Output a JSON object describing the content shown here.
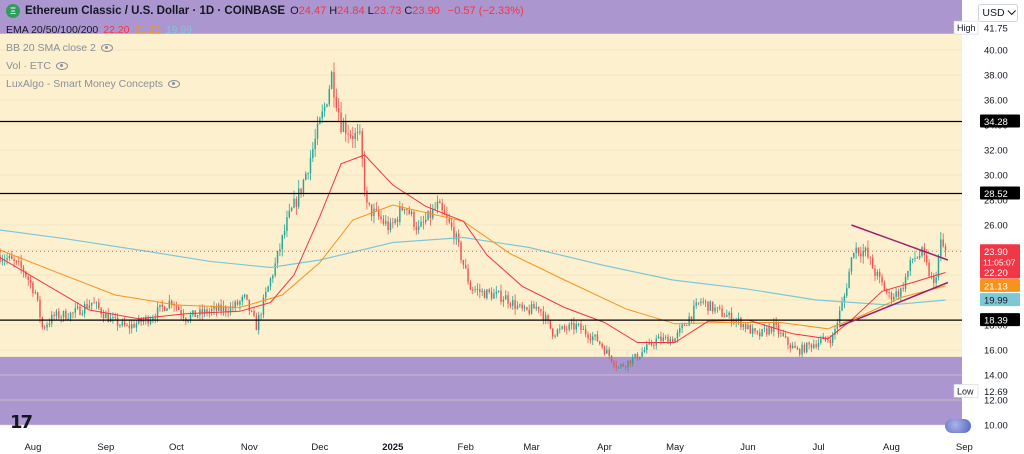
{
  "header": {
    "logo_glyph": "Ξ",
    "title": "Ethereum Classic / U.S. Dollar · 1D · COINBASE",
    "ohlc": [
      {
        "k": "O",
        "v": "24.47"
      },
      {
        "k": "H",
        "v": "24.84"
      },
      {
        "k": "L",
        "v": "23.73"
      },
      {
        "k": "C",
        "v": "23.90"
      }
    ],
    "change": "−0.57 (−2.33%)",
    "ema_label": "EMA 20/50/100/200",
    "ema_values": [
      {
        "v": "22.20",
        "color": "#f23645"
      },
      {
        "v": "21.13",
        "color": "#f7931a"
      },
      {
        "v": "19.99",
        "color": "#7ec8d6"
      }
    ],
    "indicators": [
      "BB 20 SMA close 2",
      "Vol · ETC",
      "LuxAlgo - Smart Money Concepts"
    ]
  },
  "currency_button": "USD",
  "tv_logo": "17",
  "colors": {
    "background": "#fdf0cf",
    "zone": "#ac96cf",
    "up": "#26a69a",
    "down": "#ef5350",
    "ema20": "#f23645",
    "ema50": "#f7931a",
    "ema200": "#7ec8d6",
    "wedge": "#9c1f6e",
    "level_line": "#000000"
  },
  "chart_data": {
    "type": "candlestick",
    "symbol": "ETC/USD",
    "timeframe": "1D",
    "x_range": [
      "2024-07-18",
      "2025-08-31"
    ],
    "ylim": [
      10,
      44
    ],
    "y_ticks": [
      10.0,
      12.0,
      14.0,
      16.0,
      18.0,
      20.0,
      22.0,
      24.0,
      26.0,
      28.0,
      30.0,
      32.0,
      34.0,
      36.0,
      38.0,
      40.0
    ],
    "x_labels": [
      {
        "label": "Aug",
        "date": "2024-08-01"
      },
      {
        "label": "Sep",
        "date": "2024-09-01"
      },
      {
        "label": "Oct",
        "date": "2024-10-01"
      },
      {
        "label": "Nov",
        "date": "2024-11-01"
      },
      {
        "label": "Dec",
        "date": "2024-12-01"
      },
      {
        "label": "2025",
        "date": "2025-01-01",
        "bold": true
      },
      {
        "label": "Feb",
        "date": "2025-02-01"
      },
      {
        "label": "Mar",
        "date": "2025-03-01"
      },
      {
        "label": "Apr",
        "date": "2025-04-01"
      },
      {
        "label": "May",
        "date": "2025-05-01"
      },
      {
        "label": "Jun",
        "date": "2025-06-01"
      },
      {
        "label": "Jul",
        "date": "2025-07-01"
      },
      {
        "label": "Aug",
        "date": "2025-08-01"
      },
      {
        "label": "Sep",
        "date": "2025-09-01"
      }
    ],
    "path": [
      {
        "date": "2024-07-18",
        "price": 23.6
      },
      {
        "date": "2024-07-22",
        "price": 23.2
      },
      {
        "date": "2024-07-28",
        "price": 22.4
      },
      {
        "date": "2024-08-02",
        "price": 20.6
      },
      {
        "date": "2024-08-05",
        "price": 17.8
      },
      {
        "date": "2024-08-10",
        "price": 18.7
      },
      {
        "date": "2024-08-18",
        "price": 18.9
      },
      {
        "date": "2024-08-26",
        "price": 19.8
      },
      {
        "date": "2024-09-03",
        "price": 18.4
      },
      {
        "date": "2024-09-10",
        "price": 17.8
      },
      {
        "date": "2024-09-20",
        "price": 18.6
      },
      {
        "date": "2024-09-29",
        "price": 20.0
      },
      {
        "date": "2024-10-05",
        "price": 18.6
      },
      {
        "date": "2024-10-15",
        "price": 19.1
      },
      {
        "date": "2024-10-25",
        "price": 19.4
      },
      {
        "date": "2024-10-30",
        "price": 20.1
      },
      {
        "date": "2024-11-04",
        "price": 17.9
      },
      {
        "date": "2024-11-08",
        "price": 20.4
      },
      {
        "date": "2024-11-12",
        "price": 22.8
      },
      {
        "date": "2024-11-17",
        "price": 26.2
      },
      {
        "date": "2024-11-23",
        "price": 28.9
      },
      {
        "date": "2024-11-27",
        "price": 31.4
      },
      {
        "date": "2024-12-03",
        "price": 35.4
      },
      {
        "date": "2024-12-06",
        "price": 38.0
      },
      {
        "date": "2024-12-10",
        "price": 34.2
      },
      {
        "date": "2024-12-14",
        "price": 33.4
      },
      {
        "date": "2024-12-18",
        "price": 32.8
      },
      {
        "date": "2024-12-21",
        "price": 27.4
      },
      {
        "date": "2024-12-26",
        "price": 26.6
      },
      {
        "date": "2024-12-31",
        "price": 25.7
      },
      {
        "date": "2025-01-06",
        "price": 27.7
      },
      {
        "date": "2025-01-12",
        "price": 25.6
      },
      {
        "date": "2025-01-20",
        "price": 27.5
      },
      {
        "date": "2025-01-27",
        "price": 25.4
      },
      {
        "date": "2025-02-03",
        "price": 21.0
      },
      {
        "date": "2025-02-08",
        "price": 20.6
      },
      {
        "date": "2025-02-18",
        "price": 20.2
      },
      {
        "date": "2025-02-26",
        "price": 19.0
      },
      {
        "date": "2025-03-04",
        "price": 19.5
      },
      {
        "date": "2025-03-10",
        "price": 17.4
      },
      {
        "date": "2025-03-20",
        "price": 17.9
      },
      {
        "date": "2025-03-29",
        "price": 16.8
      },
      {
        "date": "2025-04-07",
        "price": 14.6
      },
      {
        "date": "2025-04-15",
        "price": 15.5
      },
      {
        "date": "2025-04-23",
        "price": 16.8
      },
      {
        "date": "2025-05-01",
        "price": 16.9
      },
      {
        "date": "2025-05-08",
        "price": 18.9
      },
      {
        "date": "2025-05-12",
        "price": 19.9
      },
      {
        "date": "2025-05-20",
        "price": 19.0
      },
      {
        "date": "2025-05-29",
        "price": 18.2
      },
      {
        "date": "2025-06-05",
        "price": 17.1
      },
      {
        "date": "2025-06-12",
        "price": 17.9
      },
      {
        "date": "2025-06-18",
        "price": 16.5
      },
      {
        "date": "2025-06-22",
        "price": 15.9
      },
      {
        "date": "2025-06-30",
        "price": 16.6
      },
      {
        "date": "2025-07-07",
        "price": 17.0
      },
      {
        "date": "2025-07-12",
        "price": 20.3
      },
      {
        "date": "2025-07-16",
        "price": 24.2
      },
      {
        "date": "2025-07-21",
        "price": 23.8
      },
      {
        "date": "2025-07-25",
        "price": 22.2
      },
      {
        "date": "2025-07-31",
        "price": 20.3
      },
      {
        "date": "2025-08-05",
        "price": 20.7
      },
      {
        "date": "2025-08-10",
        "price": 23.3
      },
      {
        "date": "2025-08-14",
        "price": 23.7
      },
      {
        "date": "2025-08-19",
        "price": 21.1
      },
      {
        "date": "2025-08-22",
        "price": 24.5
      },
      {
        "date": "2025-08-24",
        "price": 23.9
      }
    ],
    "ema20": [
      {
        "date": "2024-07-18",
        "price": 23.4
      },
      {
        "date": "2024-08-06",
        "price": 21.3
      },
      {
        "date": "2024-08-25",
        "price": 19.2
      },
      {
        "date": "2024-09-15",
        "price": 18.5
      },
      {
        "date": "2024-10-05",
        "price": 18.9
      },
      {
        "date": "2024-10-28",
        "price": 19.1
      },
      {
        "date": "2024-11-10",
        "price": 19.8
      },
      {
        "date": "2024-11-20",
        "price": 22.0
      },
      {
        "date": "2024-12-01",
        "price": 26.7
      },
      {
        "date": "2024-12-10",
        "price": 30.9
      },
      {
        "date": "2024-12-20",
        "price": 31.6
      },
      {
        "date": "2025-01-01",
        "price": 29.2
      },
      {
        "date": "2025-01-15",
        "price": 27.5
      },
      {
        "date": "2025-01-31",
        "price": 26.3
      },
      {
        "date": "2025-02-10",
        "price": 23.6
      },
      {
        "date": "2025-02-25",
        "price": 21.1
      },
      {
        "date": "2025-03-15",
        "price": 19.4
      },
      {
        "date": "2025-04-01",
        "price": 18.2
      },
      {
        "date": "2025-04-15",
        "price": 16.6
      },
      {
        "date": "2025-05-01",
        "price": 16.6
      },
      {
        "date": "2025-05-15",
        "price": 18.3
      },
      {
        "date": "2025-06-01",
        "price": 18.4
      },
      {
        "date": "2025-06-20",
        "price": 17.3
      },
      {
        "date": "2025-07-05",
        "price": 16.9
      },
      {
        "date": "2025-07-15",
        "price": 18.4
      },
      {
        "date": "2025-07-28",
        "price": 20.7
      },
      {
        "date": "2025-08-10",
        "price": 21.4
      },
      {
        "date": "2025-08-24",
        "price": 22.2
      }
    ],
    "ema50": [
      {
        "date": "2024-07-18",
        "price": 24.0
      },
      {
        "date": "2024-08-10",
        "price": 22.3
      },
      {
        "date": "2024-09-05",
        "price": 20.4
      },
      {
        "date": "2024-10-01",
        "price": 19.6
      },
      {
        "date": "2024-10-28",
        "price": 19.4
      },
      {
        "date": "2024-11-15",
        "price": 20.4
      },
      {
        "date": "2024-12-01",
        "price": 23.0
      },
      {
        "date": "2024-12-15",
        "price": 26.4
      },
      {
        "date": "2025-01-01",
        "price": 27.6
      },
      {
        "date": "2025-01-31",
        "price": 26.3
      },
      {
        "date": "2025-02-20",
        "price": 23.7
      },
      {
        "date": "2025-03-15",
        "price": 21.6
      },
      {
        "date": "2025-04-10",
        "price": 19.3
      },
      {
        "date": "2025-05-01",
        "price": 18.1
      },
      {
        "date": "2025-05-20",
        "price": 18.2
      },
      {
        "date": "2025-06-15",
        "price": 18.2
      },
      {
        "date": "2025-07-05",
        "price": 17.7
      },
      {
        "date": "2025-07-20",
        "price": 18.8
      },
      {
        "date": "2025-08-05",
        "price": 20.2
      },
      {
        "date": "2025-08-24",
        "price": 21.13
      }
    ],
    "ema200": [
      {
        "date": "2024-07-18",
        "price": 25.6
      },
      {
        "date": "2024-08-15",
        "price": 24.9
      },
      {
        "date": "2024-09-15",
        "price": 24.0
      },
      {
        "date": "2024-10-15",
        "price": 23.1
      },
      {
        "date": "2024-11-10",
        "price": 22.6
      },
      {
        "date": "2024-12-01",
        "price": 23.2
      },
      {
        "date": "2025-01-01",
        "price": 24.6
      },
      {
        "date": "2025-01-31",
        "price": 25.0
      },
      {
        "date": "2025-02-28",
        "price": 24.2
      },
      {
        "date": "2025-03-31",
        "price": 22.8
      },
      {
        "date": "2025-04-30",
        "price": 21.6
      },
      {
        "date": "2025-05-31",
        "price": 20.9
      },
      {
        "date": "2025-06-30",
        "price": 20.0
      },
      {
        "date": "2025-07-31",
        "price": 19.6
      },
      {
        "date": "2025-08-24",
        "price": 19.99
      }
    ],
    "horizontal_levels": [
      34.28,
      28.52,
      18.39
    ],
    "zones": [
      {
        "from": 41.3,
        "to": 44.0
      },
      {
        "from": 10.0,
        "to": 15.45
      }
    ],
    "wedge": {
      "upper": [
        {
          "date": "2025-07-15",
          "price": 26.0
        },
        {
          "date": "2025-08-25",
          "price": 23.2
        }
      ],
      "lower": [
        {
          "date": "2025-07-10",
          "price": 17.9
        },
        {
          "date": "2025-08-25",
          "price": 21.4
        }
      ]
    },
    "dotted_current_price": 23.9,
    "axis_labels": [
      {
        "text": "34.28",
        "price": 34.28,
        "bg": "#000000",
        "fg": "#ffffff"
      },
      {
        "text": "28.52",
        "price": 28.52,
        "bg": "#000000",
        "fg": "#ffffff"
      },
      {
        "text": "23.90",
        "price": 23.9,
        "bg": "#f23645",
        "fg": "#ffffff",
        "sub": "11:05:07"
      },
      {
        "text": "22.20",
        "price": 22.2,
        "bg": "#f23645",
        "fg": "#ffffff"
      },
      {
        "text": "21.13",
        "price": 21.13,
        "bg": "#f7931a",
        "fg": "#ffffff"
      },
      {
        "text": "19.99",
        "price": 19.99,
        "bg": "#7ec8d6",
        "fg": "#131722"
      },
      {
        "text": "18.39",
        "price": 18.39,
        "bg": "#000000",
        "fg": "#ffffff"
      }
    ],
    "high": {
      "label": "High",
      "value": "41.75",
      "price": 41.75
    },
    "low": {
      "label": "Low",
      "value": "12.69",
      "price": 12.69
    }
  }
}
